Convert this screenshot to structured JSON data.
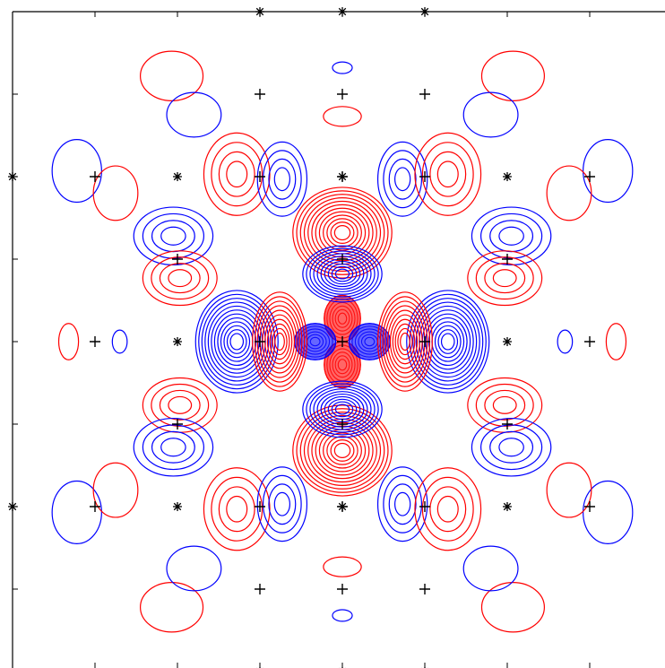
{
  "chart_data": {
    "type": "contour",
    "title": "",
    "xlabel": "",
    "ylabel": "",
    "xlim": [
      -4,
      4
    ],
    "ylim": [
      -4,
      4
    ],
    "grid": false,
    "colors": {
      "positive": "#ff0000",
      "negative": "#0000ff",
      "markers": "#000000",
      "axes": "#000000"
    },
    "plus_sites": [
      [
        -1,
        3
      ],
      [
        0,
        3
      ],
      [
        1,
        3
      ],
      [
        -3,
        2
      ],
      [
        -1,
        2
      ],
      [
        0,
        2
      ],
      [
        1,
        2
      ],
      [
        3,
        2
      ],
      [
        -2,
        1
      ],
      [
        0,
        1
      ],
      [
        2,
        1
      ],
      [
        -3,
        0
      ],
      [
        -1,
        0
      ],
      [
        0,
        0
      ],
      [
        1,
        0
      ],
      [
        3,
        0
      ],
      [
        -2,
        -1
      ],
      [
        0,
        -1
      ],
      [
        2,
        -1
      ],
      [
        -3,
        -2
      ],
      [
        -1,
        -2
      ],
      [
        0,
        -2
      ],
      [
        1,
        -2
      ],
      [
        3,
        -2
      ],
      [
        -1,
        -3
      ],
      [
        0,
        -3
      ],
      [
        1,
        -3
      ]
    ],
    "star_sites": [
      [
        -2,
        2
      ],
      [
        0,
        2
      ],
      [
        2,
        2
      ],
      [
        -2,
        0
      ],
      [
        2,
        0
      ],
      [
        -2,
        -2
      ],
      [
        0,
        -2
      ],
      [
        2,
        -2
      ],
      [
        -1,
        4
      ],
      [
        0,
        4
      ],
      [
        1,
        4
      ],
      [
        -1,
        -4
      ],
      [
        0,
        -4
      ],
      [
        1,
        -4
      ],
      [
        -4,
        2
      ],
      [
        -4,
        -2
      ]
    ],
    "lobes": [
      {
        "sign": "+",
        "x": 0,
        "y": 0.28,
        "rx": 0.22,
        "ry": 0.28,
        "levels": 6,
        "filled": true
      },
      {
        "sign": "+",
        "x": 0,
        "y": -0.28,
        "rx": 0.22,
        "ry": 0.28,
        "levels": 6,
        "filled": true
      },
      {
        "sign": "-",
        "x": -0.33,
        "y": 0,
        "rx": 0.25,
        "ry": 0.22,
        "levels": 6,
        "filled": true
      },
      {
        "sign": "-",
        "x": 0.33,
        "y": 0,
        "rx": 0.25,
        "ry": 0.22,
        "levels": 6,
        "filled": true
      },
      {
        "sign": "+",
        "x": 0,
        "y": 1.32,
        "rx": 0.6,
        "ry": 0.55,
        "levels": 12
      },
      {
        "sign": "+",
        "x": 0,
        "y": -1.32,
        "rx": 0.6,
        "ry": 0.55,
        "levels": 12
      },
      {
        "sign": "-",
        "x": 0,
        "y": 0.82,
        "rx": 0.48,
        "ry": 0.34,
        "levels": 10
      },
      {
        "sign": "-",
        "x": 0,
        "y": -0.82,
        "rx": 0.48,
        "ry": 0.34,
        "levels": 10
      },
      {
        "sign": "-",
        "x": -1.28,
        "y": 0,
        "rx": 0.5,
        "ry": 0.62,
        "levels": 12
      },
      {
        "sign": "-",
        "x": 1.28,
        "y": 0,
        "rx": 0.5,
        "ry": 0.62,
        "levels": 12
      },
      {
        "sign": "+",
        "x": -0.76,
        "y": 0,
        "rx": 0.33,
        "ry": 0.6,
        "levels": 10
      },
      {
        "sign": "+",
        "x": 0.76,
        "y": 0,
        "rx": 0.33,
        "ry": 0.6,
        "levels": 10
      },
      {
        "sign": "+",
        "x": -1.28,
        "y": 2.03,
        "rx": 0.4,
        "ry": 0.5,
        "levels": 4
      },
      {
        "sign": "-",
        "x": -0.73,
        "y": 1.97,
        "rx": 0.3,
        "ry": 0.45,
        "levels": 4
      },
      {
        "sign": "-",
        "x": 0.73,
        "y": 1.97,
        "rx": 0.3,
        "ry": 0.45,
        "levels": 4
      },
      {
        "sign": "+",
        "x": 1.28,
        "y": 2.03,
        "rx": 0.4,
        "ry": 0.5,
        "levels": 4
      },
      {
        "sign": "+",
        "x": -1.28,
        "y": -2.03,
        "rx": 0.4,
        "ry": 0.5,
        "levels": 4
      },
      {
        "sign": "-",
        "x": -0.73,
        "y": -1.97,
        "rx": 0.3,
        "ry": 0.45,
        "levels": 4
      },
      {
        "sign": "-",
        "x": 0.73,
        "y": -1.97,
        "rx": 0.3,
        "ry": 0.45,
        "levels": 4
      },
      {
        "sign": "+",
        "x": 1.28,
        "y": -2.03,
        "rx": 0.4,
        "ry": 0.5,
        "levels": 4
      },
      {
        "sign": "-",
        "x": -2.05,
        "y": 1.28,
        "rx": 0.48,
        "ry": 0.35,
        "levels": 4
      },
      {
        "sign": "+",
        "x": -1.97,
        "y": 0.77,
        "rx": 0.45,
        "ry": 0.33,
        "levels": 4
      },
      {
        "sign": "-",
        "x": 2.05,
        "y": 1.28,
        "rx": 0.48,
        "ry": 0.35,
        "levels": 4
      },
      {
        "sign": "+",
        "x": 1.97,
        "y": 0.77,
        "rx": 0.45,
        "ry": 0.33,
        "levels": 4
      },
      {
        "sign": "+",
        "x": -1.97,
        "y": -0.77,
        "rx": 0.45,
        "ry": 0.33,
        "levels": 4
      },
      {
        "sign": "-",
        "x": -2.05,
        "y": -1.28,
        "rx": 0.48,
        "ry": 0.35,
        "levels": 4
      },
      {
        "sign": "+",
        "x": 1.97,
        "y": -0.77,
        "rx": 0.45,
        "ry": 0.33,
        "levels": 4
      },
      {
        "sign": "-",
        "x": 2.05,
        "y": -1.28,
        "rx": 0.48,
        "ry": 0.35,
        "levels": 4
      },
      {
        "sign": "+",
        "x": -2.07,
        "y": 3.22,
        "rx": 0.38,
        "ry": 0.3,
        "levels": 1
      },
      {
        "sign": "-",
        "x": -1.8,
        "y": 2.75,
        "rx": 0.33,
        "ry": 0.27,
        "levels": 1
      },
      {
        "sign": "+",
        "x": 2.07,
        "y": 3.22,
        "rx": 0.38,
        "ry": 0.3,
        "levels": 1
      },
      {
        "sign": "-",
        "x": 1.8,
        "y": 2.75,
        "rx": 0.33,
        "ry": 0.27,
        "levels": 1
      },
      {
        "sign": "-",
        "x": -3.22,
        "y": 2.07,
        "rx": 0.3,
        "ry": 0.38,
        "levels": 1
      },
      {
        "sign": "+",
        "x": -2.75,
        "y": 1.8,
        "rx": 0.27,
        "ry": 0.33,
        "levels": 1
      },
      {
        "sign": "-",
        "x": 3.22,
        "y": 2.07,
        "rx": 0.3,
        "ry": 0.38,
        "levels": 1
      },
      {
        "sign": "+",
        "x": 2.75,
        "y": 1.8,
        "rx": 0.27,
        "ry": 0.33,
        "levels": 1
      },
      {
        "sign": "-",
        "x": -3.22,
        "y": -2.07,
        "rx": 0.3,
        "ry": 0.38,
        "levels": 1
      },
      {
        "sign": "+",
        "x": -2.75,
        "y": -1.8,
        "rx": 0.27,
        "ry": 0.33,
        "levels": 1
      },
      {
        "sign": "-",
        "x": 3.22,
        "y": -2.07,
        "rx": 0.3,
        "ry": 0.38,
        "levels": 1
      },
      {
        "sign": "+",
        "x": 2.75,
        "y": -1.8,
        "rx": 0.27,
        "ry": 0.33,
        "levels": 1
      },
      {
        "sign": "+",
        "x": -2.07,
        "y": -3.22,
        "rx": 0.38,
        "ry": 0.3,
        "levels": 1
      },
      {
        "sign": "-",
        "x": -1.8,
        "y": -2.75,
        "rx": 0.33,
        "ry": 0.27,
        "levels": 1
      },
      {
        "sign": "+",
        "x": 2.07,
        "y": -3.22,
        "rx": 0.38,
        "ry": 0.3,
        "levels": 1
      },
      {
        "sign": "-",
        "x": 1.8,
        "y": -2.75,
        "rx": 0.33,
        "ry": 0.27,
        "levels": 1
      },
      {
        "sign": "-",
        "x": 0,
        "y": 3.32,
        "rx": 0.12,
        "ry": 0.07,
        "levels": 1
      },
      {
        "sign": "+",
        "x": 0,
        "y": 2.73,
        "rx": 0.23,
        "ry": 0.12,
        "levels": 1
      },
      {
        "sign": "-",
        "x": 0,
        "y": -3.32,
        "rx": 0.12,
        "ry": 0.07,
        "levels": 1
      },
      {
        "sign": "+",
        "x": 0,
        "y": -2.73,
        "rx": 0.23,
        "ry": 0.12,
        "levels": 1
      },
      {
        "sign": "+",
        "x": -3.32,
        "y": 0,
        "rx": 0.12,
        "ry": 0.22,
        "levels": 1
      },
      {
        "sign": "-",
        "x": -2.7,
        "y": 0,
        "rx": 0.09,
        "ry": 0.14,
        "levels": 1
      },
      {
        "sign": "-",
        "x": 2.7,
        "y": 0,
        "rx": 0.09,
        "ry": 0.14,
        "levels": 1
      },
      {
        "sign": "+",
        "x": 3.32,
        "y": 0,
        "rx": 0.12,
        "ry": 0.22,
        "levels": 1
      }
    ]
  }
}
